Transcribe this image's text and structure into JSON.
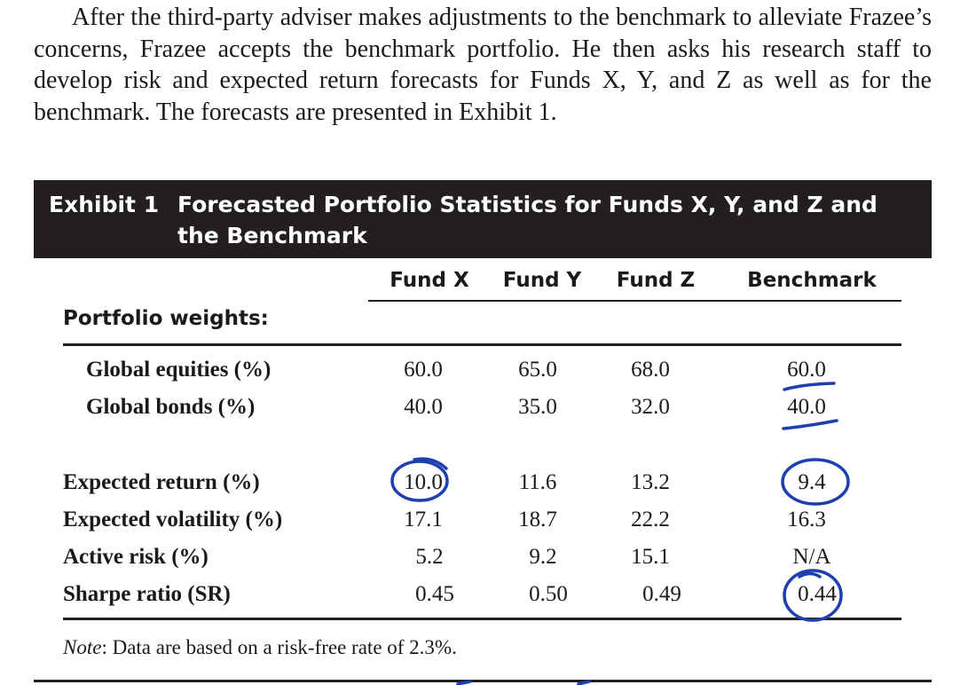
{
  "intro_text": "After the third-party adviser makes adjustments to the benchmark to alleviate Frazee’s concerns, Frazee accepts the benchmark portfolio. He then asks his research staff to develop risk and expected return forecasts for Funds X, Y, and Z as well as for the benchmark. The forecasts are presented in Exhibit 1.",
  "exhibit": {
    "label": "Exhibit 1",
    "title": "Forecasted Portfolio Statistics for Funds X, Y, and Z and the Benchmark"
  },
  "table": {
    "columns": [
      "Fund X",
      "Fund Y",
      "Fund Z",
      "Benchmark"
    ],
    "section_label": "Portfolio weights:",
    "rows": [
      {
        "label": "Global equities (%)",
        "values": [
          "60.0",
          "65.0",
          "68.0",
          "60.0"
        ]
      },
      {
        "label": "Global bonds (%)",
        "values": [
          "40.0",
          "35.0",
          "32.0",
          "40.0"
        ]
      },
      {
        "label": "Expected return (%)",
        "values": [
          "10.0",
          "11.6",
          "13.2",
          "9.4"
        ]
      },
      {
        "label": "Expected volatility (%)",
        "values": [
          "17.1",
          "18.7",
          "22.2",
          "16.3"
        ]
      },
      {
        "label": "Active risk (%)",
        "values": [
          "5.2",
          "9.2",
          "15.1",
          "N/A"
        ]
      },
      {
        "label": "Sharpe ratio (SR)",
        "values": [
          "0.45",
          "0.50",
          "0.49",
          "0.44"
        ]
      }
    ],
    "note_prefix": "Note",
    "note_text": ": Data are based on a risk-free rate of 2.3%."
  },
  "colors": {
    "header_bg": "#231f20",
    "header_text": "#ffffff",
    "annotation_ink": "#1d3fb0"
  }
}
